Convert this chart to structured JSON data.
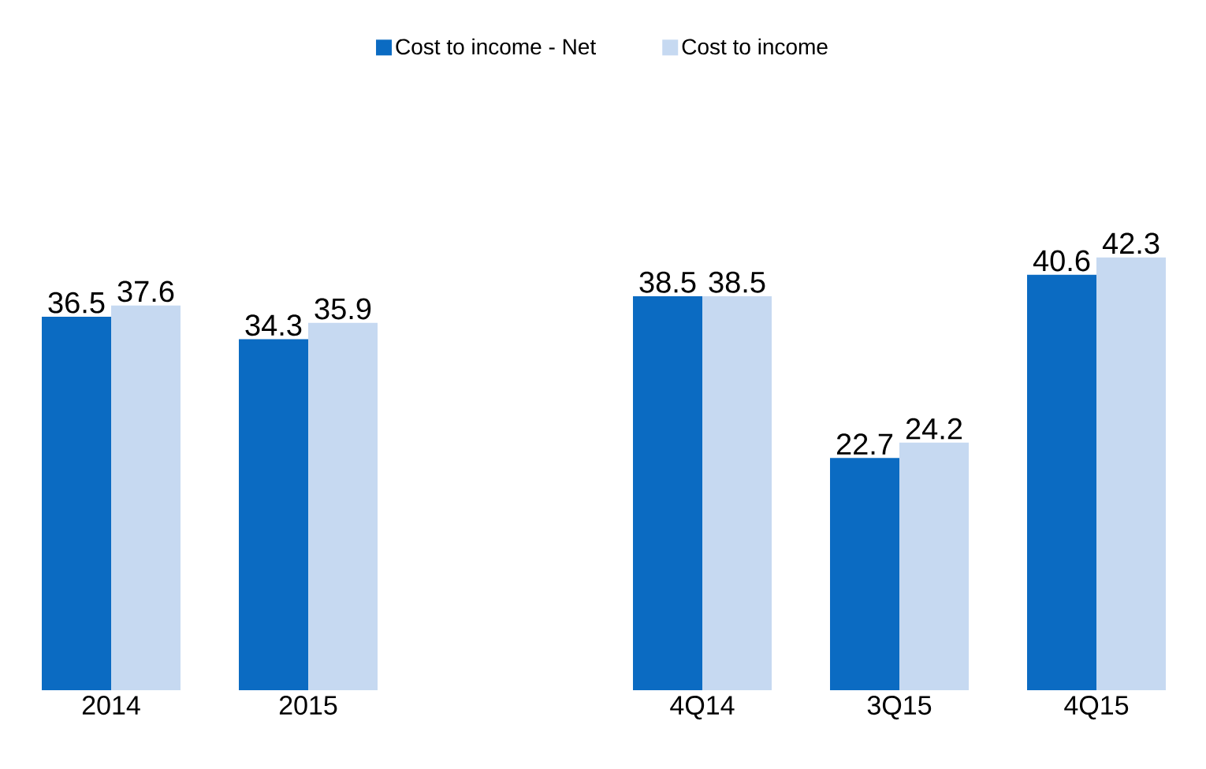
{
  "chart_data": {
    "type": "bar",
    "categories": [
      "2014",
      "2015",
      null,
      "4Q14",
      "3Q15",
      "4Q15"
    ],
    "series": [
      {
        "name": "Cost to income - Net",
        "color": "#0b6bc2",
        "values": [
          36.5,
          34.3,
          null,
          38.5,
          22.7,
          40.6
        ]
      },
      {
        "name": "Cost to income",
        "color": "#c6d9f1",
        "values": [
          37.6,
          35.9,
          null,
          38.5,
          24.2,
          42.3
        ]
      }
    ],
    "data_labels": true,
    "legend": "top"
  }
}
